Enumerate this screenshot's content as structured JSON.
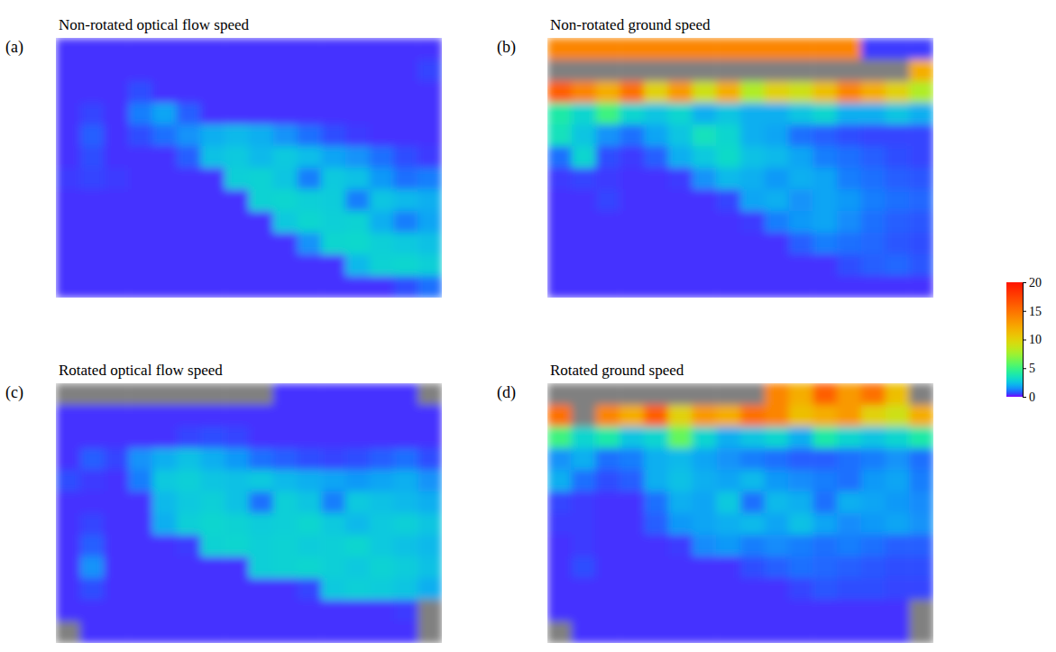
{
  "chart_data": [
    {
      "type": "heatmap",
      "panel": "(a)",
      "title": "Non-rotated optical flow speed",
      "tick_labels": false,
      "cells": [
        [
          0.3,
          0.3,
          0.3,
          0.3,
          0.3,
          0.3,
          0.3,
          0.3,
          0.3,
          0.3,
          0.3,
          0.3,
          0.3,
          0.3,
          0.3,
          0.3
        ],
        [
          0.3,
          0.3,
          0.3,
          0.3,
          0.3,
          0.3,
          0.3,
          0.3,
          0.3,
          0.3,
          0.3,
          0.3,
          0.3,
          0.3,
          0.3,
          0.5
        ],
        [
          0.3,
          0.3,
          0.3,
          0.6,
          0.3,
          0.3,
          0.3,
          0.3,
          0.3,
          0.3,
          0.3,
          0.3,
          0.3,
          0.3,
          0.3,
          0.3
        ],
        [
          0.3,
          0.5,
          0.3,
          1.2,
          1.8,
          0.8,
          0.3,
          0.3,
          0.3,
          0.3,
          0.3,
          0.3,
          0.3,
          0.3,
          0.3,
          0.3
        ],
        [
          0.3,
          0.8,
          0.3,
          0.6,
          1.0,
          1.5,
          2.0,
          2.2,
          2.0,
          1.5,
          1.0,
          0.6,
          0.4,
          0.3,
          0.3,
          0.3
        ],
        [
          0.3,
          0.6,
          0.3,
          0.3,
          0.3,
          0.8,
          2.4,
          2.6,
          2.2,
          2.6,
          2.3,
          1.8,
          1.5,
          1.0,
          0.6,
          0.4
        ],
        [
          0.4,
          0.5,
          0.4,
          0.3,
          0.3,
          0.3,
          0.3,
          2.8,
          2.9,
          2.5,
          1.2,
          2.6,
          2.4,
          1.6,
          1.0,
          1.2
        ],
        [
          0.3,
          0.3,
          0.3,
          0.3,
          0.3,
          0.3,
          0.3,
          0.3,
          2.9,
          3.0,
          2.8,
          2.7,
          1.2,
          2.5,
          2.2,
          2.0
        ],
        [
          0.3,
          0.3,
          0.3,
          0.3,
          0.3,
          0.3,
          0.3,
          0.3,
          0.3,
          2.6,
          3.0,
          2.8,
          2.9,
          2.0,
          1.2,
          1.8
        ],
        [
          0.3,
          0.3,
          0.3,
          0.3,
          0.3,
          0.3,
          0.3,
          0.3,
          0.3,
          0.3,
          1.5,
          3.0,
          3.1,
          2.8,
          2.6,
          2.4
        ],
        [
          0.3,
          0.3,
          0.3,
          0.3,
          0.3,
          0.3,
          0.3,
          0.3,
          0.3,
          0.3,
          0.3,
          0.3,
          2.2,
          2.9,
          3.0,
          2.8
        ],
        [
          0.3,
          0.3,
          0.3,
          0.3,
          0.3,
          0.3,
          0.3,
          0.3,
          0.3,
          0.3,
          0.3,
          0.3,
          0.3,
          0.3,
          0.6,
          1.0
        ]
      ]
    },
    {
      "type": "heatmap",
      "panel": "(b)",
      "title": "Non-rotated ground speed",
      "tick_labels": false,
      "cells": [
        [
          14,
          14,
          14,
          14,
          14,
          14,
          14,
          14,
          14,
          14,
          14,
          14,
          14,
          0.4,
          0.4,
          0.4
        ],
        [
          null,
          null,
          null,
          null,
          null,
          null,
          null,
          null,
          null,
          null,
          null,
          null,
          null,
          null,
          null,
          12
        ],
        [
          16,
          14,
          12,
          15,
          10,
          13,
          9,
          12,
          8,
          10,
          9,
          11,
          14,
          12,
          10,
          8
        ],
        [
          4,
          3,
          5,
          3,
          2.5,
          3,
          2,
          2.5,
          2,
          2,
          2.5,
          3,
          2,
          2,
          2.5,
          2
        ],
        [
          3.5,
          2.5,
          1.5,
          1.0,
          1.8,
          2.5,
          3.5,
          3.0,
          2.0,
          1.8,
          1.0,
          0.8,
          0.6,
          0.5,
          0.5,
          0.5
        ],
        [
          1.0,
          3.0,
          0.6,
          0.4,
          0.8,
          2.0,
          2.6,
          3.2,
          2.4,
          2.2,
          1.8,
          1.2,
          1.0,
          0.8,
          0.6,
          0.5
        ],
        [
          0.4,
          0.5,
          0.4,
          0.3,
          0.3,
          0.4,
          1.5,
          2.2,
          2.0,
          1.6,
          2.0,
          1.8,
          1.2,
          1.0,
          0.8,
          0.7
        ],
        [
          0.3,
          0.3,
          0.5,
          0.3,
          0.3,
          0.3,
          0.3,
          0.5,
          1.8,
          2.0,
          1.5,
          1.8,
          1.6,
          1.2,
          1.0,
          0.9
        ],
        [
          0.3,
          0.3,
          0.3,
          0.3,
          0.3,
          0.3,
          0.3,
          0.3,
          0.4,
          1.2,
          1.6,
          1.8,
          1.4,
          1.0,
          0.8,
          0.7
        ],
        [
          0.3,
          0.3,
          0.3,
          0.3,
          0.3,
          0.3,
          0.3,
          0.3,
          0.3,
          0.3,
          0.8,
          1.2,
          1.0,
          0.9,
          0.7,
          0.6
        ],
        [
          0.3,
          0.3,
          0.3,
          0.3,
          0.3,
          0.3,
          0.3,
          0.3,
          0.3,
          0.3,
          0.3,
          0.3,
          0.6,
          0.8,
          0.9,
          0.7
        ],
        [
          0.3,
          0.3,
          0.3,
          0.3,
          0.3,
          0.3,
          0.3,
          0.3,
          0.3,
          0.3,
          0.3,
          0.3,
          0.3,
          0.3,
          0.3,
          0.3
        ]
      ]
    },
    {
      "type": "heatmap",
      "panel": "(c)",
      "title": "Rotated optical flow speed",
      "tick_labels": false,
      "cells": [
        [
          null,
          null,
          null,
          null,
          null,
          null,
          null,
          null,
          null,
          0.3,
          0.3,
          0.3,
          0.3,
          0.3,
          0.3,
          null
        ],
        [
          0.3,
          0.3,
          0.3,
          0.3,
          0.3,
          0.3,
          0.3,
          0.3,
          0.3,
          0.3,
          0.3,
          0.3,
          0.3,
          0.3,
          0.3,
          0.3
        ],
        [
          0.3,
          0.3,
          0.3,
          0.3,
          0.3,
          0.5,
          0.6,
          0.5,
          0.3,
          0.3,
          0.3,
          0.3,
          0.3,
          0.3,
          0.3,
          0.3
        ],
        [
          0.3,
          0.8,
          0.5,
          1.5,
          2.0,
          2.4,
          2.0,
          1.6,
          1.0,
          0.8,
          0.6,
          0.5,
          0.6,
          0.8,
          1.0,
          0.6
        ],
        [
          0.6,
          0.4,
          0.3,
          1.2,
          2.6,
          2.8,
          2.5,
          2.4,
          2.6,
          2.2,
          2.0,
          1.8,
          1.6,
          1.8,
          2.0,
          1.5
        ],
        [
          0.3,
          0.3,
          0.3,
          0.3,
          2.2,
          2.6,
          2.8,
          2.4,
          1.0,
          2.8,
          2.5,
          1.2,
          2.6,
          2.4,
          2.2,
          2.0
        ],
        [
          0.3,
          0.5,
          0.3,
          0.3,
          2.0,
          2.8,
          3.0,
          2.9,
          2.7,
          2.8,
          3.0,
          2.6,
          2.2,
          2.6,
          2.8,
          2.5
        ],
        [
          0.3,
          0.8,
          0.3,
          0.3,
          0.3,
          0.4,
          2.9,
          3.0,
          2.8,
          2.9,
          2.7,
          2.8,
          3.0,
          2.6,
          2.4,
          2.2
        ],
        [
          0.3,
          1.5,
          0.3,
          0.3,
          0.3,
          0.3,
          0.3,
          0.3,
          2.8,
          2.9,
          3.0,
          2.8,
          2.6,
          2.9,
          2.7,
          2.4
        ],
        [
          0.3,
          0.6,
          0.3,
          0.3,
          0.3,
          0.3,
          0.3,
          0.3,
          0.3,
          0.3,
          0.5,
          2.6,
          2.8,
          2.7,
          2.5,
          2.0
        ],
        [
          0.3,
          0.3,
          0.3,
          0.3,
          0.3,
          0.3,
          0.3,
          0.3,
          0.3,
          0.3,
          0.3,
          0.3,
          0.3,
          0.3,
          0.4,
          null
        ],
        [
          null,
          0.3,
          0.3,
          0.3,
          0.3,
          0.3,
          0.3,
          0.3,
          0.3,
          0.3,
          0.3,
          0.3,
          0.3,
          0.3,
          0.3,
          null
        ]
      ]
    },
    {
      "type": "heatmap",
      "panel": "(d)",
      "title": "Rotated ground speed",
      "tick_labels": false,
      "cells": [
        [
          null,
          null,
          null,
          null,
          null,
          null,
          null,
          null,
          null,
          14,
          12,
          16,
          13,
          15,
          11,
          null
        ],
        [
          15,
          null,
          14,
          12,
          16,
          10,
          13,
          12,
          15,
          14,
          11,
          12,
          13,
          10,
          9,
          12
        ],
        [
          5,
          3,
          4,
          2.5,
          3,
          6,
          3,
          2,
          2.5,
          3,
          2,
          4,
          3,
          2.5,
          3,
          4
        ],
        [
          1.5,
          2.0,
          1.0,
          1.2,
          2.0,
          2.2,
          1.8,
          1.5,
          1.2,
          1.0,
          0.8,
          0.8,
          1.0,
          1.2,
          1.5,
          1.0
        ],
        [
          2.0,
          1.0,
          0.6,
          0.8,
          2.0,
          2.4,
          2.0,
          1.8,
          2.2,
          1.6,
          1.4,
          1.2,
          1.0,
          1.6,
          1.8,
          1.2
        ],
        [
          0.5,
          0.4,
          0.3,
          0.3,
          1.0,
          2.0,
          1.8,
          2.6,
          1.0,
          2.2,
          2.0,
          1.0,
          2.0,
          1.8,
          1.6,
          1.4
        ],
        [
          0.4,
          0.4,
          0.3,
          0.3,
          0.8,
          1.6,
          1.8,
          2.0,
          2.2,
          1.8,
          2.4,
          1.8,
          1.4,
          1.6,
          1.8,
          1.5
        ],
        [
          0.3,
          0.4,
          0.3,
          0.3,
          0.3,
          0.4,
          1.4,
          1.6,
          1.2,
          1.4,
          1.2,
          1.0,
          1.2,
          1.0,
          0.8,
          0.8
        ],
        [
          0.3,
          0.6,
          0.3,
          0.3,
          0.3,
          0.3,
          0.3,
          0.3,
          0.6,
          0.8,
          1.0,
          0.9,
          0.8,
          0.7,
          0.6,
          0.6
        ],
        [
          0.3,
          0.3,
          0.3,
          0.3,
          0.3,
          0.3,
          0.3,
          0.3,
          0.3,
          0.3,
          0.5,
          0.7,
          0.6,
          0.6,
          0.5,
          0.5
        ],
        [
          0.3,
          0.3,
          0.3,
          0.3,
          0.3,
          0.3,
          0.3,
          0.3,
          0.3,
          0.3,
          0.3,
          0.3,
          0.3,
          0.3,
          0.3,
          null
        ],
        [
          null,
          0.3,
          0.3,
          0.3,
          0.3,
          0.3,
          0.3,
          0.3,
          0.3,
          0.3,
          0.3,
          0.3,
          0.3,
          0.3,
          0.3,
          null
        ]
      ]
    }
  ],
  "colorbar": {
    "lim": [
      0,
      20
    ],
    "ticks": [
      0,
      5,
      10,
      15,
      20
    ]
  }
}
